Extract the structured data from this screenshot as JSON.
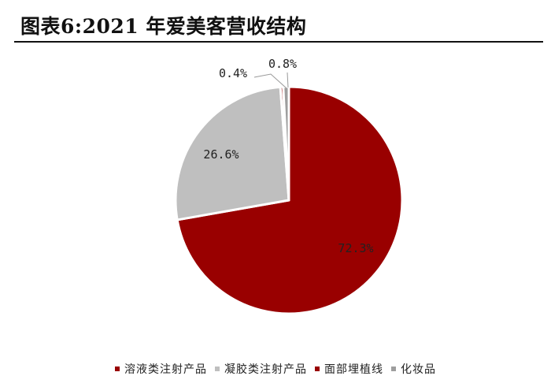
{
  "header": {
    "title": "图表6:2021 年爱美客营收结构"
  },
  "chart_data": {
    "type": "pie",
    "title": "图表6:2021 年爱美客营收结构",
    "start_angle_deg": 0,
    "direction": "clockwise",
    "slices": [
      {
        "name": "溶液类注射产品",
        "value": 72.3,
        "label": "72.3%",
        "color": "#990000"
      },
      {
        "name": "凝胶类注射产品",
        "value": 26.6,
        "label": "26.6%",
        "color": "#bfbfbf"
      },
      {
        "name": "面部埋植线",
        "value": 0.4,
        "label": "0.4%",
        "color": "#990000"
      },
      {
        "name": "化妆品",
        "value": 0.8,
        "label": "0.8%",
        "color": "#9e9e9e"
      }
    ],
    "legend_position": "bottom"
  }
}
